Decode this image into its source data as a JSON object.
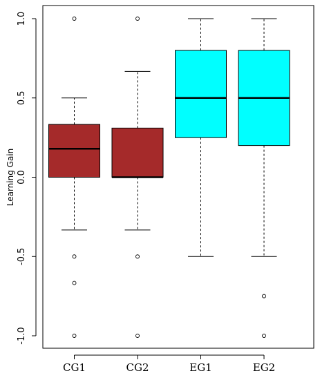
{
  "chart_data": {
    "type": "boxplot",
    "ylabel": "Learning Gain",
    "ylim": [
      -1.0,
      1.0
    ],
    "yticks": [
      -1.0,
      -0.5,
      0.0,
      0.5,
      1.0
    ],
    "ytick_labels": [
      "-1.0",
      "-0.5",
      "0.0",
      "0.5",
      "1.0"
    ],
    "grid": false,
    "categories": [
      "CG1",
      "CG2",
      "EG1",
      "EG2"
    ],
    "boxes": [
      {
        "name": "CG1",
        "color": "#a52a2a",
        "whisker_low": -0.333,
        "q1": 0.0,
        "median": 0.18,
        "q3": 0.333,
        "whisker_high": 0.5,
        "outliers": [
          1.0,
          -0.5,
          -0.667,
          -1.0
        ]
      },
      {
        "name": "CG2",
        "color": "#a52a2a",
        "whisker_low": -0.333,
        "q1": 0.0,
        "median": 0.0,
        "q3": 0.31,
        "whisker_high": 0.667,
        "outliers": [
          1.0,
          -0.5,
          -1.0
        ]
      },
      {
        "name": "EG1",
        "color": "#00ffff",
        "whisker_low": -0.5,
        "q1": 0.25,
        "median": 0.5,
        "q3": 0.8,
        "whisker_high": 1.0,
        "outliers": []
      },
      {
        "name": "EG2",
        "color": "#00ffff",
        "whisker_low": -0.5,
        "q1": 0.2,
        "median": 0.5,
        "q3": 0.8,
        "whisker_high": 1.0,
        "outliers": [
          -0.75,
          -1.0
        ]
      }
    ]
  }
}
